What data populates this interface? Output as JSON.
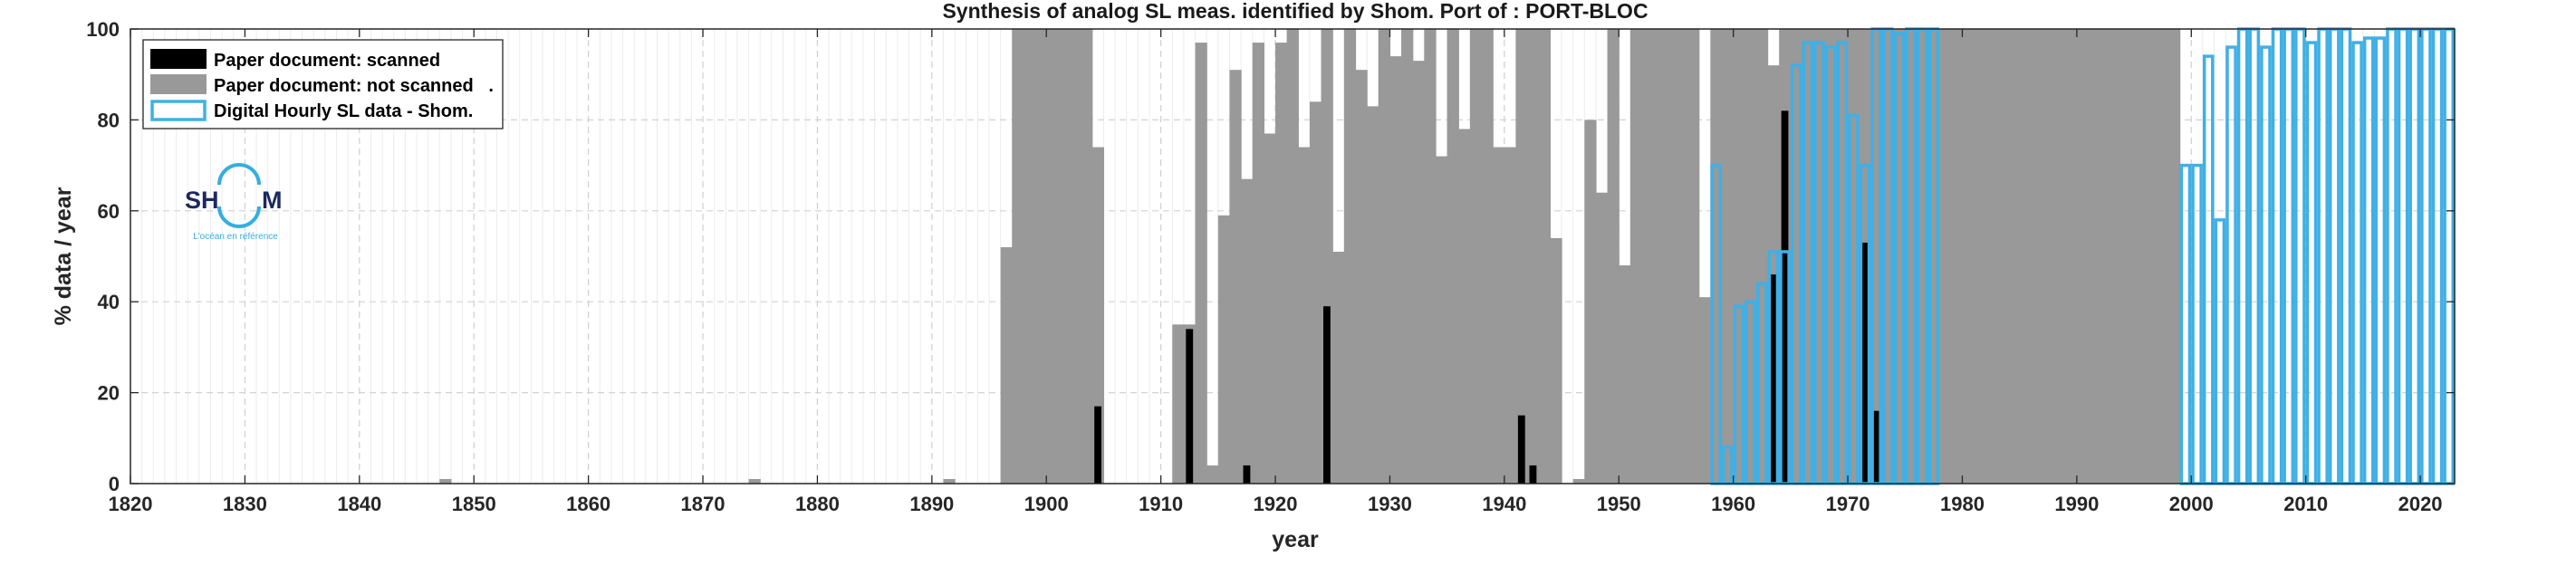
{
  "chart_data": {
    "type": "bar",
    "title": "Synthesis of analog SL meas. identified by Shom. Port of : PORT-BLOC",
    "xlabel": "year",
    "ylabel": "% data / year",
    "xlim": [
      1820,
      2023
    ],
    "ylim": [
      0,
      100
    ],
    "xticks": [
      1820,
      1830,
      1840,
      1850,
      1860,
      1870,
      1880,
      1890,
      1900,
      1910,
      1920,
      1930,
      1940,
      1950,
      1960,
      1970,
      1980,
      1990,
      2000,
      2010,
      2020
    ],
    "yticks": [
      0,
      20,
      40,
      60,
      80,
      100
    ],
    "grid": true,
    "legend_position": "top-left",
    "legend": [
      {
        "key": "scanned",
        "label": "Paper document: scanned",
        "color": "#000000",
        "style": "filled"
      },
      {
        "key": "not_scanned",
        "label": "Paper document: not scanned   .",
        "color": "#999999",
        "style": "filled"
      },
      {
        "key": "digital",
        "label": "Digital Hourly SL data - Shom.",
        "color": "#3fb0e6",
        "style": "outline"
      }
    ],
    "series": [
      {
        "name": "Paper document: not scanned",
        "color": "#999999",
        "points": [
          [
            1847,
            1
          ],
          [
            1874,
            1
          ],
          [
            1891,
            1
          ],
          [
            1896,
            52
          ],
          [
            1897,
            100
          ],
          [
            1898,
            100
          ],
          [
            1899,
            100
          ],
          [
            1900,
            100
          ],
          [
            1901,
            100
          ],
          [
            1902,
            100
          ],
          [
            1903,
            100
          ],
          [
            1904,
            74
          ],
          [
            1911,
            35
          ],
          [
            1912,
            35
          ],
          [
            1913,
            97
          ],
          [
            1914,
            4
          ],
          [
            1915,
            59
          ],
          [
            1916,
            91
          ],
          [
            1917,
            67
          ],
          [
            1918,
            97
          ],
          [
            1919,
            77
          ],
          [
            1920,
            97
          ],
          [
            1921,
            100
          ],
          [
            1922,
            74
          ],
          [
            1923,
            84
          ],
          [
            1924,
            100
          ],
          [
            1925,
            51
          ],
          [
            1926,
            100
          ],
          [
            1927,
            91
          ],
          [
            1928,
            83
          ],
          [
            1929,
            100
          ],
          [
            1930,
            94
          ],
          [
            1931,
            100
          ],
          [
            1932,
            93
          ],
          [
            1933,
            100
          ],
          [
            1934,
            72
          ],
          [
            1935,
            100
          ],
          [
            1936,
            78
          ],
          [
            1937,
            100
          ],
          [
            1938,
            100
          ],
          [
            1939,
            74
          ],
          [
            1940,
            74
          ],
          [
            1941,
            100
          ],
          [
            1942,
            100
          ],
          [
            1943,
            100
          ],
          [
            1944,
            54
          ],
          [
            1946,
            1
          ],
          [
            1947,
            80
          ],
          [
            1948,
            64
          ],
          [
            1949,
            100
          ],
          [
            1950,
            48
          ],
          [
            1951,
            100
          ],
          [
            1952,
            100
          ],
          [
            1953,
            100
          ],
          [
            1954,
            100
          ],
          [
            1955,
            100
          ],
          [
            1956,
            100
          ],
          [
            1957,
            41
          ],
          [
            1958,
            100
          ],
          [
            1959,
            100
          ],
          [
            1960,
            100
          ],
          [
            1961,
            100
          ],
          [
            1962,
            100
          ],
          [
            1963,
            92
          ],
          [
            1964,
            100
          ],
          [
            1965,
            100
          ],
          [
            1966,
            100
          ],
          [
            1967,
            100
          ],
          [
            1968,
            100
          ],
          [
            1969,
            100
          ],
          [
            1970,
            100
          ],
          [
            1971,
            100
          ],
          [
            1972,
            100
          ],
          [
            1973,
            100
          ],
          [
            1974,
            100
          ],
          [
            1975,
            100
          ],
          [
            1976,
            100
          ],
          [
            1977,
            100
          ],
          [
            1978,
            100
          ],
          [
            1979,
            100
          ],
          [
            1980,
            100
          ],
          [
            1981,
            100
          ],
          [
            1982,
            100
          ],
          [
            1983,
            100
          ],
          [
            1984,
            100
          ],
          [
            1985,
            100
          ],
          [
            1986,
            100
          ],
          [
            1987,
            100
          ],
          [
            1988,
            100
          ],
          [
            1989,
            100
          ],
          [
            1990,
            100
          ],
          [
            1991,
            100
          ],
          [
            1992,
            100
          ],
          [
            1993,
            100
          ],
          [
            1994,
            100
          ],
          [
            1995,
            100
          ],
          [
            1996,
            100
          ],
          [
            1997,
            100
          ],
          [
            1998,
            100
          ]
        ]
      },
      {
        "name": "Paper document: scanned",
        "color": "#000000",
        "points": [
          [
            1904,
            17
          ],
          [
            1912,
            34
          ],
          [
            1917,
            4
          ],
          [
            1924,
            39
          ],
          [
            1941,
            15
          ],
          [
            1942,
            4
          ],
          [
            1963,
            46
          ],
          [
            1964,
            82
          ],
          [
            1971,
            53
          ],
          [
            1972,
            16
          ]
        ]
      },
      {
        "name": "Digital Hourly SL data - Shom.",
        "color": "#3fb0e6",
        "points": [
          [
            1958,
            70
          ],
          [
            1959,
            8
          ],
          [
            1960,
            39
          ],
          [
            1961,
            40
          ],
          [
            1962,
            44
          ],
          [
            1963,
            51
          ],
          [
            1964,
            51
          ],
          [
            1965,
            92
          ],
          [
            1966,
            97
          ],
          [
            1967,
            97
          ],
          [
            1968,
            96
          ],
          [
            1969,
            97
          ],
          [
            1970,
            81
          ],
          [
            1971,
            70
          ],
          [
            1972,
            100
          ],
          [
            1973,
            100
          ],
          [
            1974,
            99
          ],
          [
            1975,
            100
          ],
          [
            1976,
            100
          ],
          [
            1977,
            100
          ],
          [
            1999,
            70
          ],
          [
            2000,
            70
          ],
          [
            2001,
            94
          ],
          [
            2002,
            58
          ],
          [
            2003,
            96
          ],
          [
            2004,
            100
          ],
          [
            2005,
            100
          ],
          [
            2006,
            96
          ],
          [
            2007,
            100
          ],
          [
            2008,
            100
          ],
          [
            2009,
            100
          ],
          [
            2010,
            97
          ],
          [
            2011,
            100
          ],
          [
            2012,
            100
          ],
          [
            2013,
            100
          ],
          [
            2014,
            97
          ],
          [
            2015,
            98
          ],
          [
            2016,
            98
          ],
          [
            2017,
            100
          ],
          [
            2018,
            100
          ],
          [
            2019,
            100
          ],
          [
            2020,
            100
          ],
          [
            2021,
            100
          ],
          [
            2022,
            100
          ]
        ]
      }
    ]
  },
  "logo": {
    "text_left": "SH",
    "text_right": "M",
    "tagline": "L'océan en référence"
  }
}
